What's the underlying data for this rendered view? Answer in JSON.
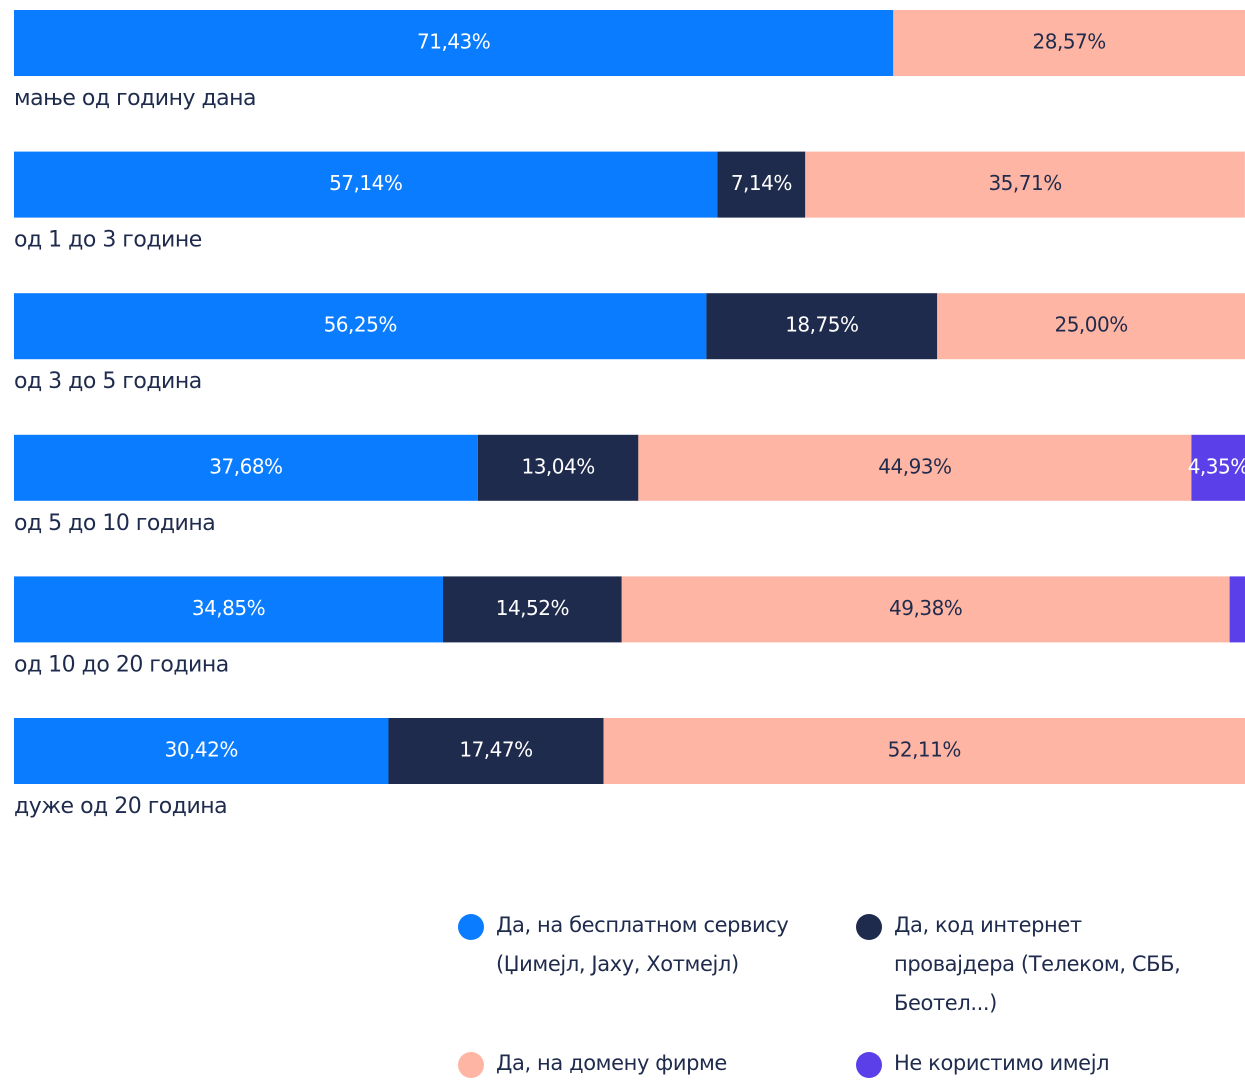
{
  "chart_data": {
    "type": "bar",
    "orientation": "horizontal",
    "stacked": true,
    "categories": [
      "мање од годину дана",
      "од 1 до 3 године",
      "од 3 до 5 година",
      "од 5 до 10 година",
      "од 10 до 20 година",
      "дуже од 20 година"
    ],
    "xlim": [
      0,
      100
    ],
    "series": [
      {
        "name": "Да, на бесплатном сервису (Џимејл, Јаху, Хотмејл)",
        "color": "#0a7cff",
        "label_color": "#ffffff",
        "values": [
          71.43,
          57.14,
          56.25,
          37.68,
          34.85,
          30.42
        ],
        "value_labels": [
          "71,43%",
          "57,14%",
          "56,25%",
          "37,68%",
          "34,85%",
          "30,42%"
        ]
      },
      {
        "name": "Да, код интернет провајдера (Телеком, СББ, Беотел...)",
        "color": "#1f2b4d",
        "label_color": "#ffffff",
        "values": [
          0,
          7.14,
          18.75,
          13.04,
          14.52,
          17.47
        ],
        "value_labels": [
          null,
          "7,14%",
          "18,75%",
          "13,04%",
          "14,52%",
          "17,47%"
        ]
      },
      {
        "name": "Да, на домену фирме",
        "color": "#ffb5a3",
        "label_color": "#1f2b4d",
        "values": [
          28.57,
          35.71,
          25.0,
          44.93,
          49.38,
          52.11
        ],
        "value_labels": [
          "28,57%",
          "35,71%",
          "25,00%",
          "44,93%",
          "49,38%",
          "52,11%"
        ]
      },
      {
        "name": "Не користимо имејл",
        "color": "#5b3fe8",
        "label_color": "#ffffff",
        "values": [
          0,
          0,
          0,
          4.35,
          1.25,
          0
        ],
        "value_labels": [
          null,
          null,
          null,
          "4,35%",
          null,
          null
        ]
      }
    ]
  }
}
